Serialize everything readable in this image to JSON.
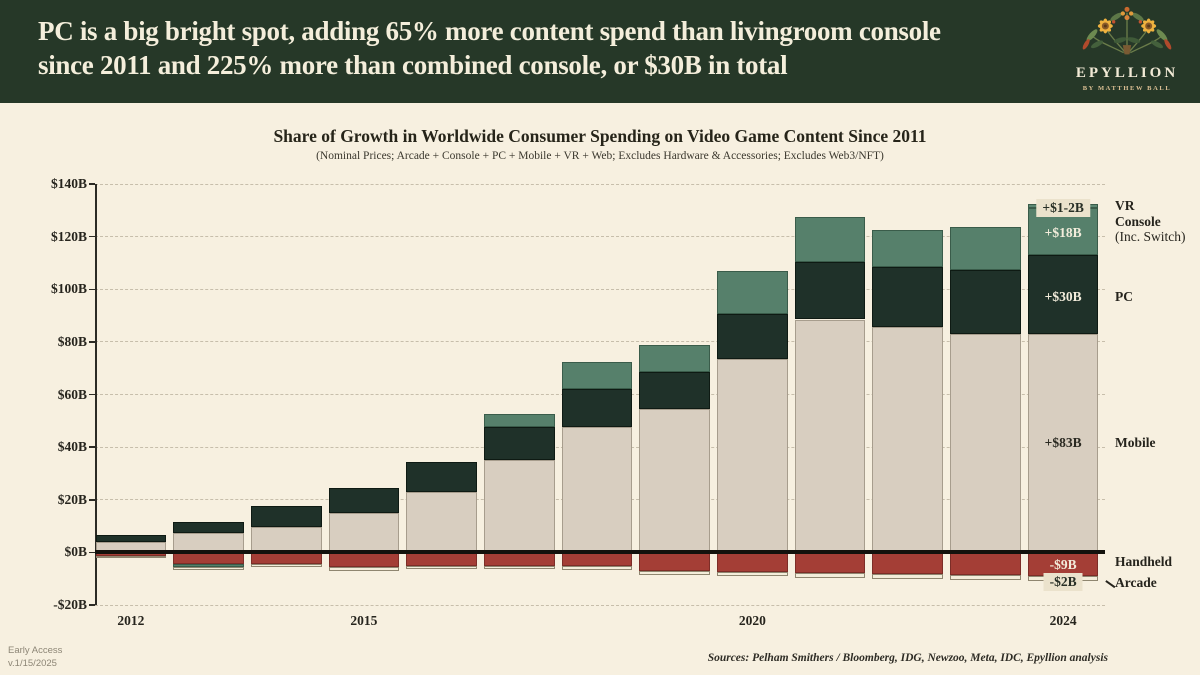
{
  "header": {
    "title_line1": "PC is a big bright spot, adding 65% more content spend than livingroom console",
    "title_line2": "since 2011 and 225% more than combined console, or $30B in total",
    "brand": "EPYLLION",
    "brand_sub": "BY MATTHEW BALL"
  },
  "chart": {
    "title": "Share of Growth in Worldwide Consumer Spending on Video Game Content Since 2011",
    "subtitle": "(Nominal Prices; Arcade + Console + PC + Mobile + VR + Web; Excludes Hardware & Accessories; Excludes Web3/NFT)"
  },
  "footer": {
    "early_access": "Early Access",
    "version": "v.1/15/2025",
    "sources": "Sources: Pelham Smithers / Bloomberg, IDG, Newzoo, Meta, IDC, Epyllion analysis"
  },
  "colors": {
    "header_bg": "#263828",
    "page_bg": "#f7f0e0",
    "mobile": "#d8cec0",
    "pc": "#1f3129",
    "console": "#56806b",
    "handheld": "#a43e36",
    "arcade": "#f3edda",
    "zero_line": "#14120d",
    "annotation_box_bg": "#ebe2cc"
  },
  "chart_data": {
    "type": "bar",
    "stacked": true,
    "title": "Share of Growth in Worldwide Consumer Spending on Video Game Content Since 2011",
    "subtitle": "(Nominal Prices; Arcade + Console + PC + Mobile + VR + Web; Excludes Hardware & Accessories; Excludes Web3/NFT)",
    "unit": "USD billions of growth vs 2011",
    "grid": "dashed horizontal",
    "legend_position": "right",
    "x": [
      2012,
      2013,
      2014,
      2015,
      2016,
      2017,
      2018,
      2019,
      2020,
      2021,
      2022,
      2023,
      2024
    ],
    "x_tick_labels": [
      2012,
      2015,
      2020,
      2024
    ],
    "ylim": [
      -20,
      140
    ],
    "y_ticks": [
      140,
      120,
      100,
      80,
      60,
      40,
      20,
      0,
      -20
    ],
    "y_tick_format": "$B",
    "series": [
      {
        "key": "mobile",
        "name": "Mobile",
        "color": "#d8cec0",
        "border": "#a79d8d",
        "values": [
          4,
          7.5,
          9.5,
          15,
          23,
          35,
          47.5,
          54.5,
          73.5,
          88.5,
          85.5,
          83,
          83
        ]
      },
      {
        "key": "pc",
        "name": "PC",
        "color": "#1f3129",
        "border": "#0e1a13",
        "values": [
          2.5,
          4,
          8,
          9.5,
          11.5,
          12.5,
          14.5,
          14,
          17,
          22,
          23,
          24.5,
          30
        ]
      },
      {
        "key": "console",
        "name": "Console (Inc. Switch)",
        "color": "#56806b",
        "border": "#3a5c4a",
        "values": [
          0,
          -1.3,
          0,
          0,
          0,
          5,
          10.5,
          10.5,
          16.5,
          17,
          14,
          16,
          18
        ]
      },
      {
        "key": "vr",
        "name": "VR",
        "color": "#5d8873",
        "border": "#3a5c4a",
        "values": [
          0,
          0,
          0,
          0,
          0,
          0,
          0,
          0,
          0,
          0,
          0,
          0,
          1.5
        ]
      },
      {
        "key": "handheld",
        "name": "Handheld",
        "color": "#a43e36",
        "border": "#7c2d27",
        "values": [
          -1.3,
          -4.3,
          -4.3,
          -5.5,
          -5,
          -5,
          -5.2,
          -7,
          -7.3,
          -8,
          -8.2,
          -8.6,
          -9
        ]
      },
      {
        "key": "arcade",
        "name": "Arcade",
        "color": "#f3edda",
        "border": "#8f8670",
        "values": [
          -1,
          -1,
          -1.3,
          -1.4,
          -1.4,
          -1.5,
          -1.5,
          -1.6,
          -1.7,
          -1.8,
          -1.9,
          -1.9,
          -2
        ]
      }
    ],
    "stack_order_positive": [
      "mobile",
      "pc",
      "console",
      "vr"
    ],
    "stack_order_negative": [
      "handheld",
      "console",
      "arcade"
    ],
    "annotations": [
      {
        "text": "+$1-2B",
        "series": "vr",
        "year": 2024,
        "at": 130.7,
        "style": "box"
      },
      {
        "text": "+$18B",
        "series": "console",
        "year": 2024,
        "at": 121.5,
        "style": "light"
      },
      {
        "text": "+$30B",
        "series": "pc",
        "year": 2024,
        "at": 97,
        "style": "light"
      },
      {
        "text": "+$83B",
        "series": "mobile",
        "year": 2024,
        "at": 41.5,
        "style": "dark"
      },
      {
        "text": "-$9B",
        "series": "handheld",
        "year": 2024,
        "at": -4.8,
        "style": "light"
      },
      {
        "text": "-$2B",
        "series": "arcade",
        "year": 2024,
        "at": -11.3,
        "style": "box"
      }
    ],
    "right_labels": [
      {
        "text": "VR",
        "at": 131.5,
        "weight": "bold"
      },
      {
        "text": "Console",
        "at": 125.5,
        "weight": "bold"
      },
      {
        "text": "(Inc. Switch)",
        "at": 119.8,
        "weight": "normal"
      },
      {
        "text": "PC",
        "at": 97,
        "weight": "bold"
      },
      {
        "text": "Mobile",
        "at": 41.5,
        "weight": "bold"
      },
      {
        "text": "Handheld",
        "at": -3.8,
        "weight": "bold"
      },
      {
        "text": "Arcade",
        "at": -11.8,
        "weight": "bold",
        "connector": true
      }
    ]
  }
}
